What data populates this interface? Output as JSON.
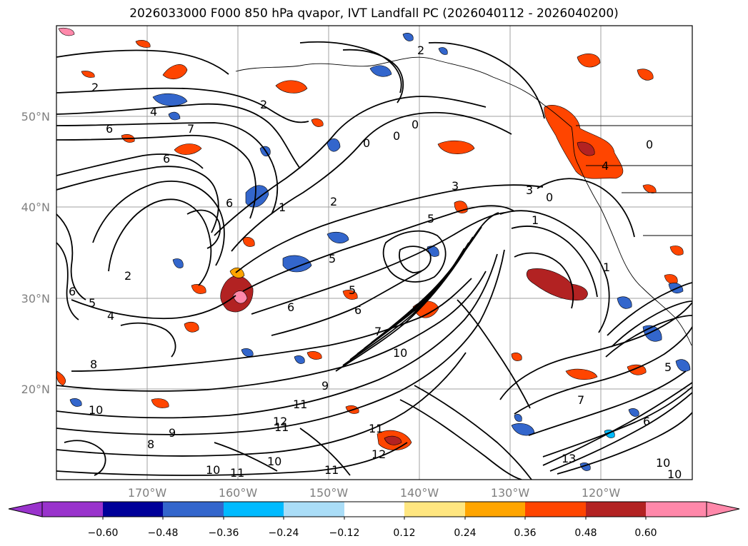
{
  "title": "2026033000 F000 850 hPa qvapor, IVT Landfall PC (2026040112 - 2026040200)",
  "map": {
    "lat_labels": [
      "50°N",
      "40°N",
      "30°N",
      "20°N"
    ],
    "lon_labels": [
      "170°W",
      "160°W",
      "150°W",
      "140°W",
      "130°W",
      "120°W"
    ],
    "label_color": "#808080",
    "grid_color": "#a0a0a0",
    "contour_color": "#000000",
    "contour_labels": [
      "2",
      "4",
      "6",
      "7",
      "2",
      "0",
      "0",
      "0",
      "3",
      "3",
      "0",
      "1",
      "5",
      "6",
      "1",
      "2",
      "5",
      "6",
      "2",
      "4",
      "5",
      "6",
      "6",
      "8",
      "9",
      "10",
      "11",
      "11",
      "10",
      "9",
      "8",
      "7",
      "6",
      "5",
      "10",
      "10",
      "11",
      "11",
      "12",
      "13",
      "10",
      "10",
      "11",
      "12",
      "2",
      "4",
      "1",
      "0",
      "5",
      "6",
      "7"
    ]
  },
  "colorbar": {
    "tick_labels": [
      "−0.60",
      "−0.48",
      "−0.36",
      "−0.24",
      "−0.12",
      "0.12",
      "0.24",
      "0.36",
      "0.48",
      "0.60"
    ],
    "extend": "both",
    "colors": {
      "under": "#9933cc",
      "bins": [
        "#9933cc",
        "#000099",
        "#3366cc",
        "#00bbff",
        "#aaddf7",
        "#ffffff",
        "#ffe680",
        "#ffa500",
        "#ff4500",
        "#b22222"
      ],
      "over": "#ff88aa"
    }
  },
  "features": {
    "positive_color_levels": [
      "#ffe680",
      "#ffa500",
      "#ff4500",
      "#b22222",
      "#ff88aa"
    ],
    "negative_color_levels": [
      "#aaddf7",
      "#00bbff",
      "#3366cc",
      "#000099"
    ]
  }
}
